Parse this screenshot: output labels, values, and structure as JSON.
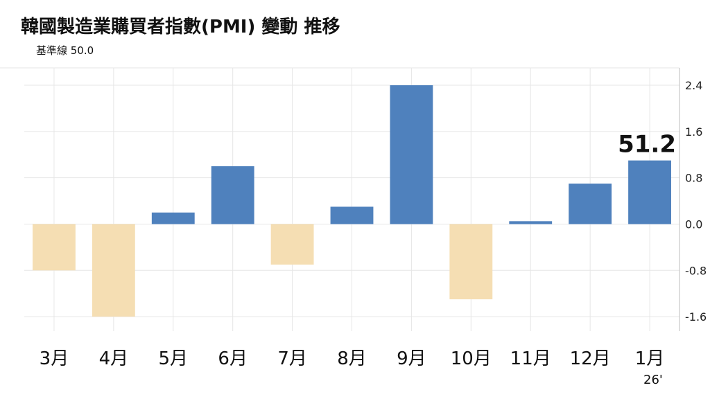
{
  "title": "韓國製造業購買者指數(PMI) 變動 推移",
  "subtitle": "基準線 50.0",
  "year_label": "26'",
  "colors": {
    "positive": "#4f81bd",
    "negative": "#f5deb3",
    "grid": "#e6e6e6",
    "axis": "#bdbdbd"
  },
  "chart_data": {
    "type": "bar",
    "title": "韓國製造業購買者指數(PMI) 變動 推移",
    "subtitle": "基準線 50.0",
    "xlabel": "",
    "ylabel": "",
    "categories": [
      "3月",
      "4月",
      "5月",
      "6月",
      "7月",
      "8月",
      "9月",
      "10月",
      "11月",
      "12月",
      "1月"
    ],
    "values": [
      -0.8,
      -1.6,
      0.2,
      1.0,
      -0.7,
      0.3,
      2.4,
      -1.3,
      0.05,
      0.7,
      1.1
    ],
    "yticks": [
      2.4,
      1.6,
      0.8,
      0.0,
      -0.8,
      -1.6
    ],
    "ytick_labels": [
      "2.4",
      "1.6",
      "0.8",
      "0.0",
      "-0.8",
      "-1.6"
    ],
    "ylim": [
      -1.85,
      2.7
    ],
    "y_axis_side": "right",
    "grid": true,
    "legend": "none",
    "callout": {
      "category": "1月",
      "text": "51.2"
    }
  }
}
